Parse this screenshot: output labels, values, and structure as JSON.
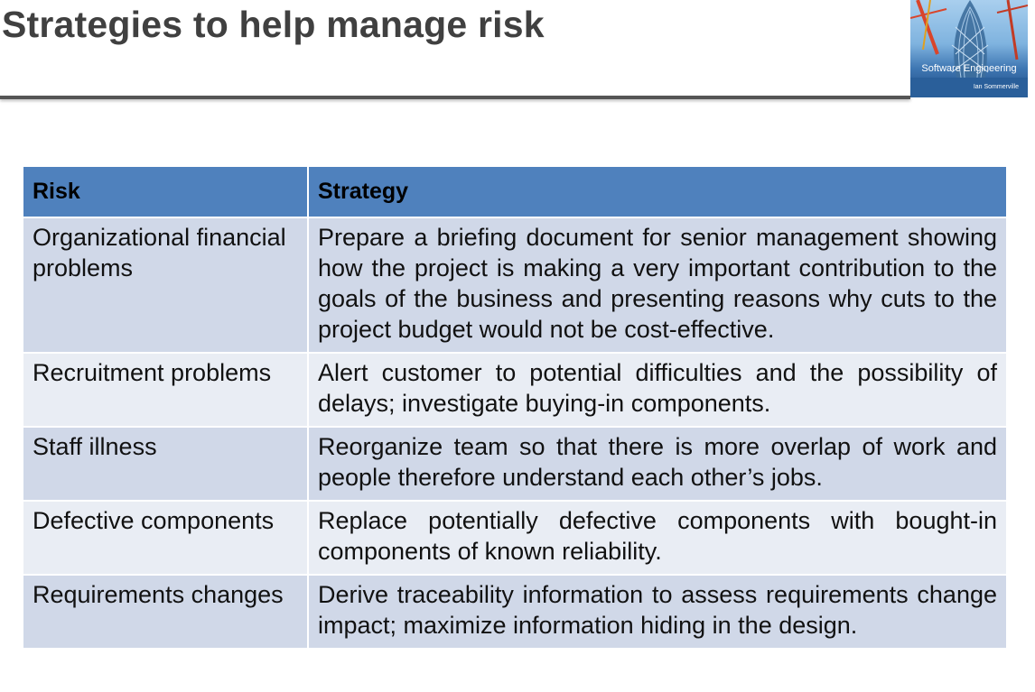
{
  "slide": {
    "title": "Strategies to help manage risk"
  },
  "book_cover": {
    "title": "Software Engineering",
    "author": "Ian Sommerville"
  },
  "table": {
    "headers": [
      "Risk",
      "Strategy"
    ],
    "rows": [
      {
        "risk": "Organizational financial problems",
        "strategy": "Prepare a briefing document for senior management showing how the project is making a very important contribution to the goals of the business and presenting reasons why cuts to the project budget would not be cost-effective."
      },
      {
        "risk": "Recruitment problems",
        "strategy": "Alert customer to potential difficulties and the possibility of delays; investigate buying-in components."
      },
      {
        "risk": "Staff illness",
        "strategy": "Reorganize team so that there is more overlap of work and people therefore understand each other’s jobs."
      },
      {
        "risk": "Defective components",
        "strategy": "Replace potentially defective components with bought-in components of known reliability."
      },
      {
        "risk": "Requirements changes",
        "strategy": "Derive traceability information to assess requirements change impact; maximize information hiding in the design."
      }
    ]
  },
  "colors": {
    "header_bg": "#4f81bd",
    "row_band_dark": "#d0d8e8",
    "row_band_light": "#e9edf4",
    "title_text": "#404040"
  }
}
